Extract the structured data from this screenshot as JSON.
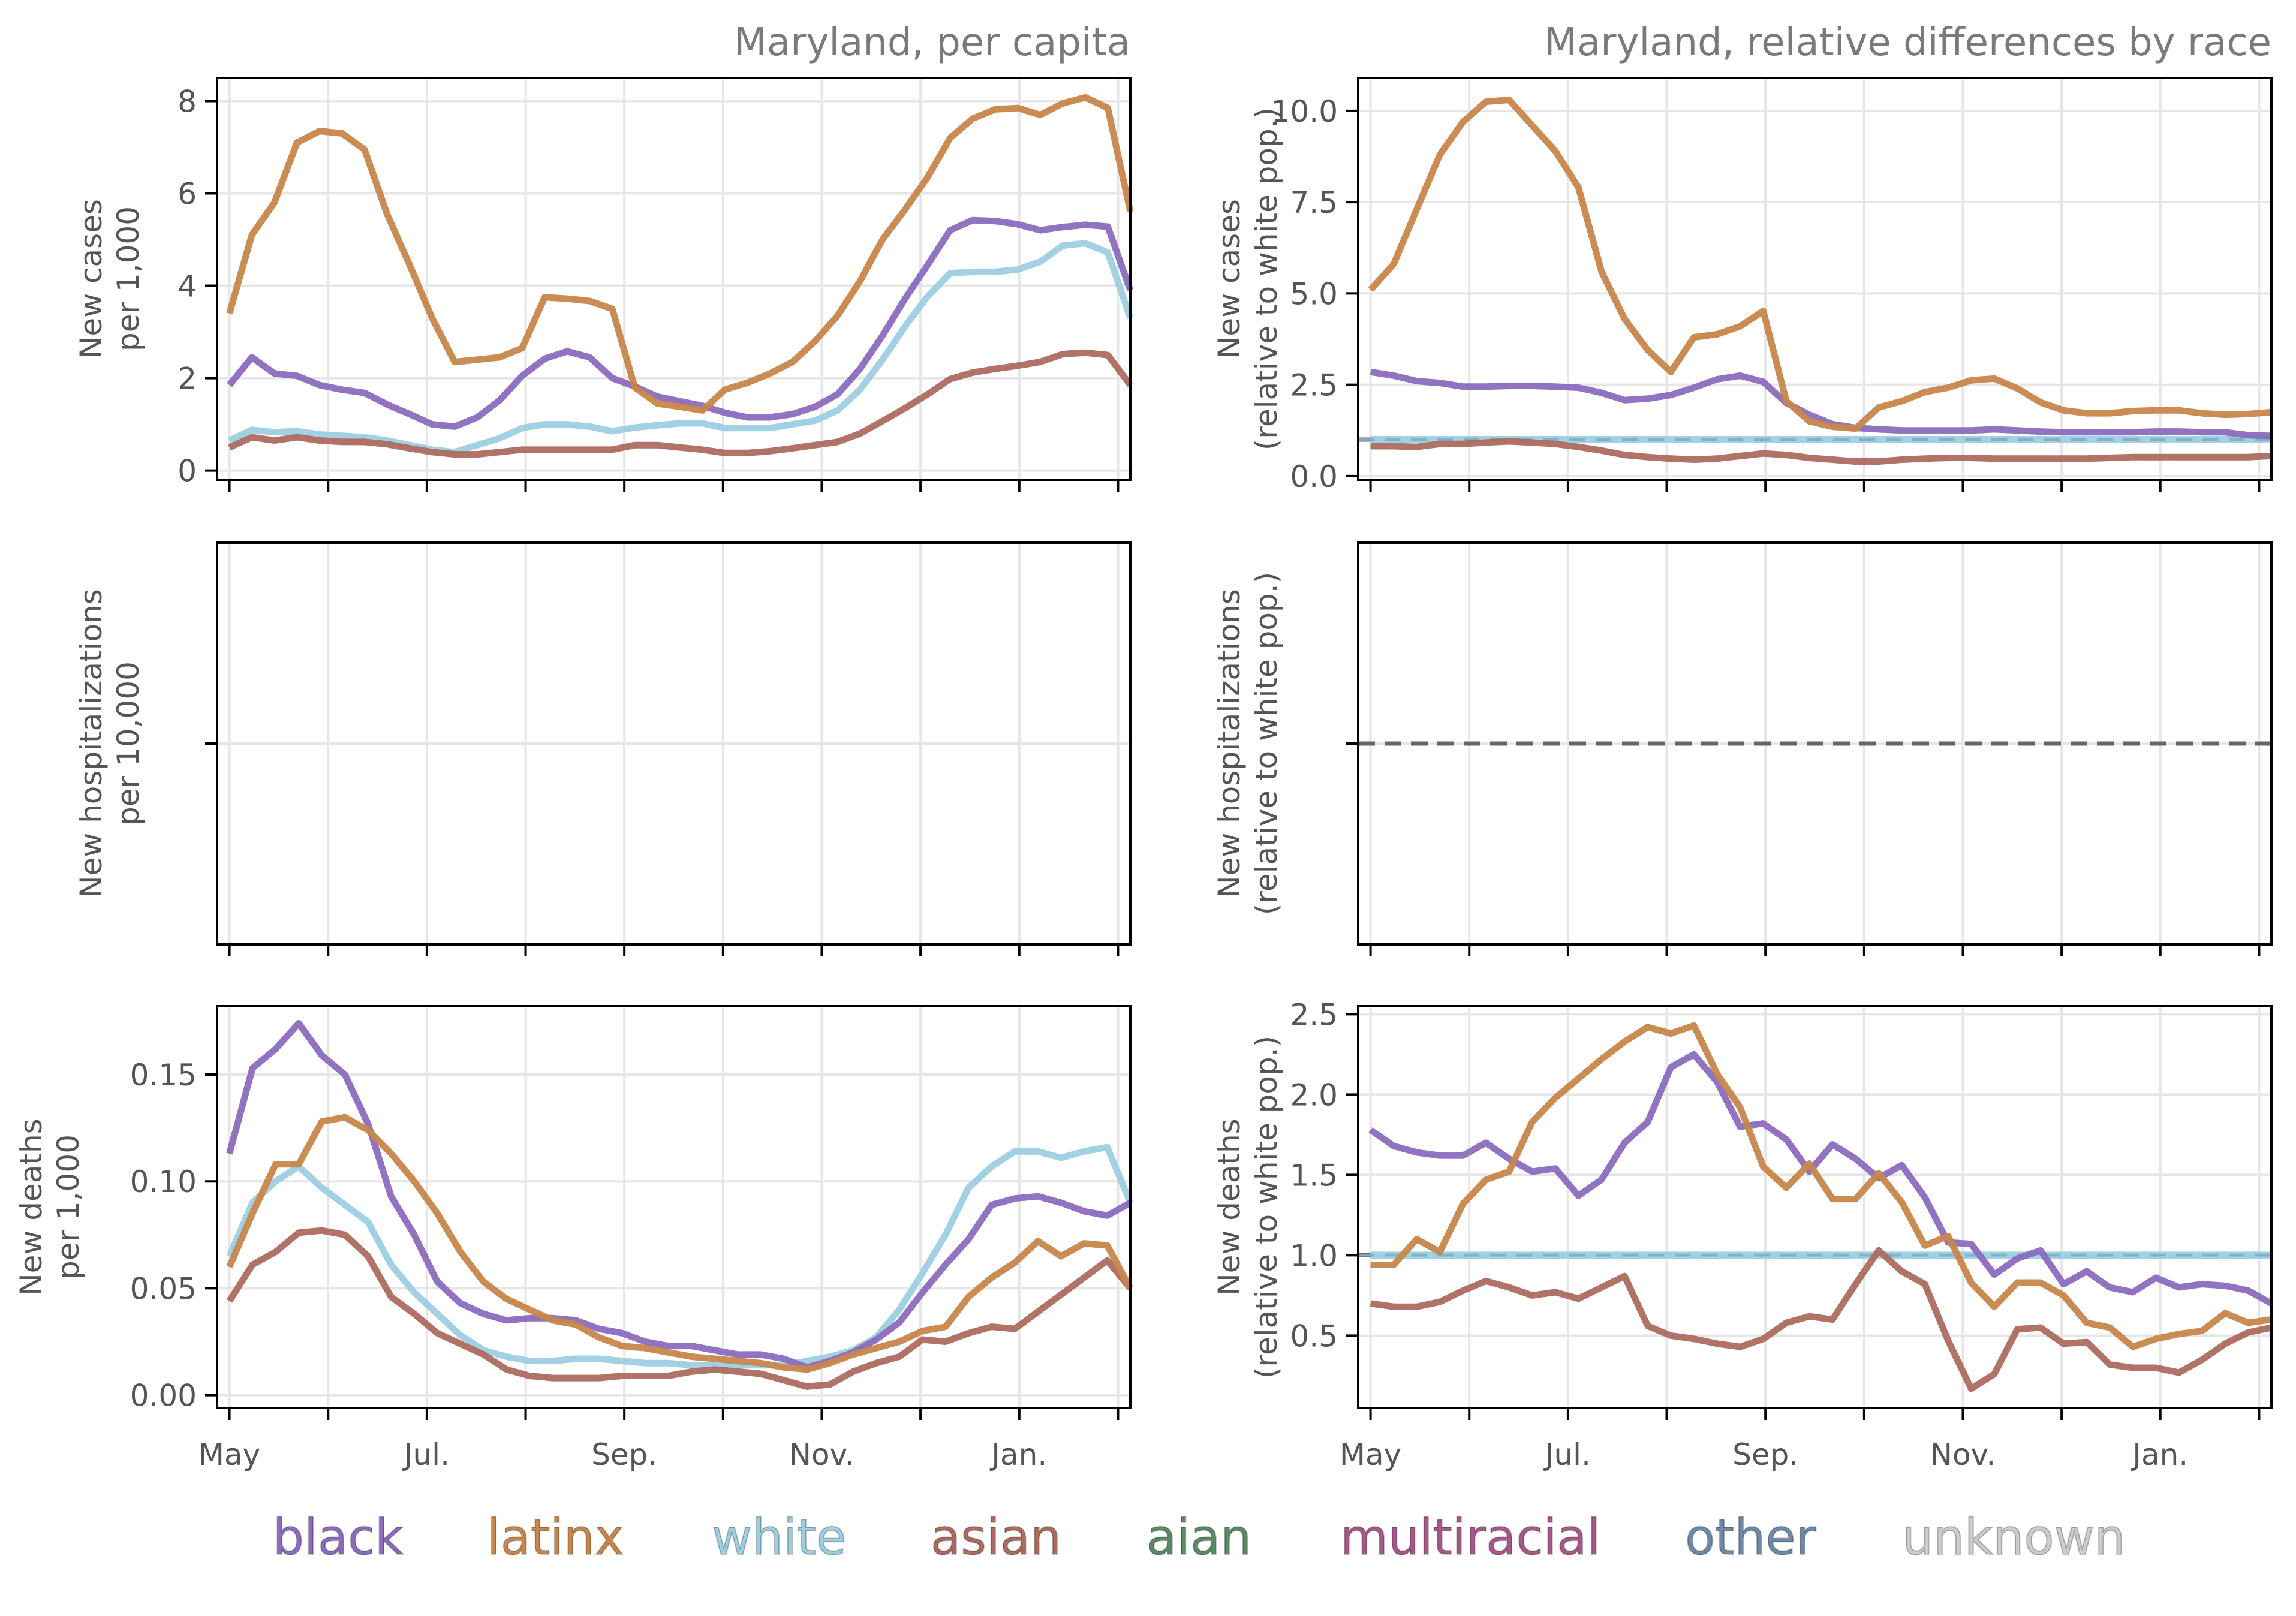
{
  "legend": [
    {
      "key": "black",
      "label": "black",
      "color": "#8c6bbe"
    },
    {
      "key": "latinx",
      "label": "latinx",
      "color": "#c8864a"
    },
    {
      "key": "white",
      "label": "white",
      "color": "#9dcfe2"
    },
    {
      "key": "asian",
      "label": "asian",
      "color": "#ad6a60"
    },
    {
      "key": "aian",
      "label": "aian",
      "color": "#5b8a66"
    },
    {
      "key": "multiracial",
      "label": "multiracial",
      "color": "#a85888"
    },
    {
      "key": "other",
      "label": "other",
      "color": "#6f8aa6"
    },
    {
      "key": "unknown",
      "label": "unknown",
      "color": "#cccccc"
    }
  ],
  "colors": {
    "black": "#8c6bbe",
    "latinx": "#c8864a",
    "white": "#9dcfe2",
    "white_dash": "#7fb0c8",
    "asian": "#ad6a60",
    "reference_line": "#666666",
    "grid": "#e6e6e6",
    "title_text": "#7a7a7a",
    "axis_text": "#555555"
  },
  "chart_data": [
    {
      "id": "cases-per-capita",
      "type": "line",
      "title": "Maryland, per capita",
      "ylabel": [
        "New cases",
        "per 1,000"
      ],
      "xlabel": "",
      "xlim": [
        -0.5,
        36.5
      ],
      "ylim": [
        -0.2,
        8.5
      ],
      "yticks": [
        0,
        2,
        4,
        6,
        8
      ],
      "ytick_labels": [
        "0",
        "2",
        "4",
        "6",
        "8"
      ],
      "xtick_labels_shown": false,
      "series": [
        {
          "name": "latinx",
          "values": [
            3.4,
            5.1,
            5.8,
            7.1,
            7.35,
            7.3,
            6.95,
            5.55,
            4.45,
            3.3,
            2.35,
            2.4,
            2.45,
            2.65,
            3.75,
            3.72,
            3.67,
            3.5,
            1.8,
            1.45,
            1.38,
            1.3,
            1.75,
            1.9,
            2.1,
            2.35,
            2.8,
            3.35,
            4.1,
            5.0,
            5.65,
            6.35,
            7.2,
            7.62,
            7.82,
            7.85,
            7.7,
            7.95,
            8.08,
            7.85,
            5.6
          ]
        },
        {
          "name": "black",
          "values": [
            1.85,
            2.45,
            2.1,
            2.05,
            1.85,
            1.75,
            1.68,
            1.43,
            1.22,
            1.0,
            0.95,
            1.15,
            1.52,
            2.05,
            2.42,
            2.58,
            2.45,
            2.0,
            1.82,
            1.6,
            1.5,
            1.4,
            1.25,
            1.15,
            1.15,
            1.22,
            1.38,
            1.65,
            2.2,
            2.92,
            3.72,
            4.45,
            5.2,
            5.42,
            5.4,
            5.33,
            5.2,
            5.27,
            5.32,
            5.28,
            3.9
          ]
        },
        {
          "name": "white",
          "values": [
            0.65,
            0.88,
            0.83,
            0.85,
            0.78,
            0.75,
            0.72,
            0.65,
            0.55,
            0.45,
            0.4,
            0.55,
            0.7,
            0.92,
            1.0,
            1.0,
            0.95,
            0.85,
            0.93,
            0.98,
            1.02,
            1.02,
            0.92,
            0.92,
            0.92,
            1.0,
            1.08,
            1.3,
            1.75,
            2.4,
            3.12,
            3.77,
            4.27,
            4.3,
            4.3,
            4.35,
            4.52,
            4.87,
            4.92,
            4.72,
            3.3
          ]
        },
        {
          "name": "asian",
          "values": [
            0.5,
            0.72,
            0.65,
            0.72,
            0.65,
            0.62,
            0.62,
            0.57,
            0.48,
            0.4,
            0.35,
            0.35,
            0.4,
            0.45,
            0.45,
            0.45,
            0.45,
            0.45,
            0.55,
            0.55,
            0.5,
            0.45,
            0.38,
            0.38,
            0.42,
            0.48,
            0.55,
            0.62,
            0.8,
            1.07,
            1.35,
            1.65,
            1.98,
            2.12,
            2.2,
            2.27,
            2.35,
            2.52,
            2.55,
            2.5,
            1.85
          ]
        }
      ]
    },
    {
      "id": "cases-relative",
      "type": "line",
      "title": "Maryland, relative differences by race",
      "ylabel": [
        "New cases",
        "(relative to white pop.)"
      ],
      "xlabel": "",
      "xlim": [
        -0.5,
        36.5
      ],
      "ylim": [
        -0.1,
        10.9
      ],
      "yticks": [
        0,
        2.5,
        5,
        7.5,
        10
      ],
      "ytick_labels": [
        "0.0",
        "2.5",
        "5.0",
        "7.5",
        "10.0"
      ],
      "reference_line": 1.0,
      "xtick_labels_shown": false,
      "series": [
        {
          "name": "latinx",
          "values": [
            5.1,
            5.8,
            7.3,
            8.8,
            9.7,
            10.25,
            10.3,
            9.6,
            8.9,
            7.9,
            5.6,
            4.3,
            3.45,
            2.85,
            3.8,
            3.88,
            4.1,
            4.52,
            2.05,
            1.5,
            1.35,
            1.3,
            1.88,
            2.05,
            2.3,
            2.42,
            2.62,
            2.67,
            2.4,
            2.02,
            1.8,
            1.72,
            1.72,
            1.78,
            1.8,
            1.8,
            1.72,
            1.68,
            1.7,
            1.75
          ]
        },
        {
          "name": "black",
          "values": [
            2.85,
            2.75,
            2.6,
            2.55,
            2.45,
            2.45,
            2.47,
            2.47,
            2.45,
            2.42,
            2.28,
            2.08,
            2.12,
            2.22,
            2.42,
            2.65,
            2.75,
            2.58,
            2.0,
            1.68,
            1.42,
            1.32,
            1.28,
            1.25,
            1.25,
            1.25,
            1.25,
            1.28,
            1.25,
            1.22,
            1.2,
            1.2,
            1.2,
            1.2,
            1.22,
            1.22,
            1.2,
            1.2,
            1.12,
            1.1
          ]
        },
        {
          "name": "white",
          "values": [
            1,
            1,
            1,
            1,
            1,
            1,
            1,
            1,
            1,
            1,
            1,
            1,
            1,
            1,
            1,
            1,
            1,
            1,
            1,
            1,
            1,
            1,
            1,
            1,
            1,
            1,
            1,
            1,
            1,
            1,
            1,
            1,
            1,
            1,
            1,
            1,
            1,
            1,
            1,
            1
          ]
        },
        {
          "name": "asian",
          "values": [
            0.82,
            0.82,
            0.8,
            0.88,
            0.88,
            0.92,
            0.95,
            0.92,
            0.88,
            0.8,
            0.7,
            0.58,
            0.52,
            0.48,
            0.45,
            0.48,
            0.55,
            0.62,
            0.58,
            0.5,
            0.45,
            0.4,
            0.4,
            0.45,
            0.48,
            0.5,
            0.5,
            0.48,
            0.48,
            0.48,
            0.48,
            0.48,
            0.5,
            0.52,
            0.52,
            0.52,
            0.52,
            0.52,
            0.52,
            0.55
          ]
        }
      ]
    },
    {
      "id": "hosp-per-capita",
      "type": "line",
      "title": "",
      "ylabel": [
        "New hospitalizations",
        "per 10,000"
      ],
      "xlabel": "",
      "xlim": [
        -0.5,
        36.5
      ],
      "ylim": [
        -1,
        1
      ],
      "yticks": [
        0
      ],
      "ytick_labels": [
        ""
      ],
      "xtick_labels_shown": false,
      "series": []
    },
    {
      "id": "hosp-relative",
      "type": "line",
      "title": "",
      "ylabel": [
        "New hospitalizations",
        "(relative to white pop.)"
      ],
      "xlabel": "",
      "xlim": [
        -0.5,
        36.5
      ],
      "ylim": [
        -1,
        1
      ],
      "yticks": [
        0
      ],
      "ytick_labels": [
        ""
      ],
      "reference_line": 0,
      "reference_color": "#666666",
      "xtick_labels_shown": false,
      "series": []
    },
    {
      "id": "deaths-per-capita",
      "type": "line",
      "title": "",
      "ylabel": [
        "New deaths",
        "per 1,000"
      ],
      "xlabel": "",
      "xlim": [
        -0.5,
        36.5
      ],
      "ylim": [
        -0.006,
        0.182
      ],
      "yticks": [
        0,
        0.05,
        0.1,
        0.15
      ],
      "ytick_labels": [
        "0.00",
        "0.05",
        "0.10",
        "0.15"
      ],
      "xtick_labels_shown": true,
      "series": [
        {
          "name": "black",
          "values": [
            0.113,
            0.153,
            0.162,
            0.174,
            0.159,
            0.15,
            0.127,
            0.093,
            0.075,
            0.053,
            0.043,
            0.038,
            0.035,
            0.036,
            0.036,
            0.035,
            0.031,
            0.029,
            0.025,
            0.023,
            0.023,
            0.021,
            0.019,
            0.019,
            0.017,
            0.013,
            0.016,
            0.02,
            0.026,
            0.034,
            0.048,
            0.061,
            0.073,
            0.089,
            0.092,
            0.093,
            0.09,
            0.086,
            0.084,
            0.09
          ]
        },
        {
          "name": "latinx",
          "values": [
            0.06,
            0.085,
            0.108,
            0.108,
            0.128,
            0.13,
            0.124,
            0.113,
            0.1,
            0.085,
            0.067,
            0.053,
            0.045,
            0.04,
            0.035,
            0.033,
            0.027,
            0.023,
            0.022,
            0.02,
            0.018,
            0.017,
            0.016,
            0.015,
            0.013,
            0.012,
            0.015,
            0.019,
            0.022,
            0.025,
            0.03,
            0.032,
            0.046,
            0.055,
            0.062,
            0.072,
            0.065,
            0.071,
            0.07,
            0.05
          ]
        },
        {
          "name": "white",
          "values": [
            0.065,
            0.09,
            0.1,
            0.107,
            0.097,
            0.089,
            0.081,
            0.061,
            0.048,
            0.038,
            0.028,
            0.021,
            0.018,
            0.016,
            0.016,
            0.017,
            0.017,
            0.016,
            0.015,
            0.015,
            0.014,
            0.014,
            0.014,
            0.014,
            0.014,
            0.016,
            0.018,
            0.021,
            0.027,
            0.04,
            0.057,
            0.075,
            0.097,
            0.107,
            0.114,
            0.114,
            0.111,
            0.114,
            0.116,
            0.09
          ]
        },
        {
          "name": "asian",
          "values": [
            0.044,
            0.061,
            0.067,
            0.076,
            0.077,
            0.075,
            0.065,
            0.046,
            0.038,
            0.029,
            0.024,
            0.019,
            0.012,
            0.009,
            0.008,
            0.008,
            0.008,
            0.009,
            0.009,
            0.009,
            0.011,
            0.012,
            0.011,
            0.01,
            0.007,
            0.004,
            0.005,
            0.011,
            0.015,
            0.018,
            0.026,
            0.025,
            0.029,
            0.032,
            0.031,
            0.039,
            0.047,
            0.055,
            0.063,
            0.05
          ]
        }
      ]
    },
    {
      "id": "deaths-relative",
      "type": "line",
      "title": "",
      "ylabel": [
        "New deaths",
        "(relative to white pop.)"
      ],
      "xlabel": "",
      "xlim": [
        -0.5,
        36.5
      ],
      "ylim": [
        0.05,
        2.55
      ],
      "yticks": [
        0.5,
        1.0,
        1.5,
        2.0,
        2.5
      ],
      "ytick_labels": [
        "0.5",
        "1.0",
        "1.5",
        "2.0",
        "2.5"
      ],
      "reference_line": 1.0,
      "xtick_labels_shown": true,
      "series": [
        {
          "name": "black",
          "values": [
            1.78,
            1.68,
            1.64,
            1.62,
            1.62,
            1.7,
            1.6,
            1.52,
            1.54,
            1.37,
            1.47,
            1.7,
            1.83,
            2.17,
            2.25,
            2.08,
            1.8,
            1.82,
            1.72,
            1.52,
            1.69,
            1.6,
            1.48,
            1.56,
            1.36,
            1.08,
            1.07,
            0.88,
            0.98,
            1.03,
            0.82,
            0.9,
            0.8,
            0.77,
            0.86,
            0.8,
            0.82,
            0.81,
            0.78,
            0.7
          ]
        },
        {
          "name": "latinx",
          "values": [
            0.94,
            0.94,
            1.1,
            1.02,
            1.32,
            1.47,
            1.52,
            1.83,
            1.98,
            2.1,
            2.22,
            2.33,
            2.42,
            2.38,
            2.43,
            2.13,
            1.92,
            1.55,
            1.42,
            1.57,
            1.35,
            1.35,
            1.51,
            1.33,
            1.06,
            1.12,
            0.83,
            0.68,
            0.83,
            0.83,
            0.75,
            0.58,
            0.55,
            0.43,
            0.48,
            0.51,
            0.53,
            0.64,
            0.58,
            0.6
          ]
        },
        {
          "name": "white",
          "values": [
            1,
            1,
            1,
            1,
            1,
            1,
            1,
            1,
            1,
            1,
            1,
            1,
            1,
            1,
            1,
            1,
            1,
            1,
            1,
            1,
            1,
            1,
            1,
            1,
            1,
            1,
            1,
            1,
            1,
            1,
            1,
            1,
            1,
            1,
            1,
            1,
            1,
            1,
            1,
            1
          ]
        },
        {
          "name": "asian",
          "values": [
            0.7,
            0.68,
            0.68,
            0.71,
            0.78,
            0.84,
            0.8,
            0.75,
            0.77,
            0.73,
            0.8,
            0.87,
            0.56,
            0.5,
            0.48,
            0.45,
            0.43,
            0.48,
            0.58,
            0.62,
            0.6,
            0.82,
            1.03,
            0.9,
            0.82,
            0.47,
            0.17,
            0.26,
            0.54,
            0.55,
            0.45,
            0.46,
            0.32,
            0.3,
            0.3,
            0.27,
            0.35,
            0.45,
            0.52,
            0.55
          ]
        }
      ]
    }
  ],
  "x_axis": {
    "tick_positions": [
      0,
      4,
      8,
      12,
      16,
      20,
      24,
      28,
      32,
      36
    ],
    "label_positions": [
      0,
      8,
      16,
      24,
      32
    ],
    "labels": [
      "May",
      "Jul.",
      "Sep.",
      "Nov.",
      "Jan."
    ]
  }
}
